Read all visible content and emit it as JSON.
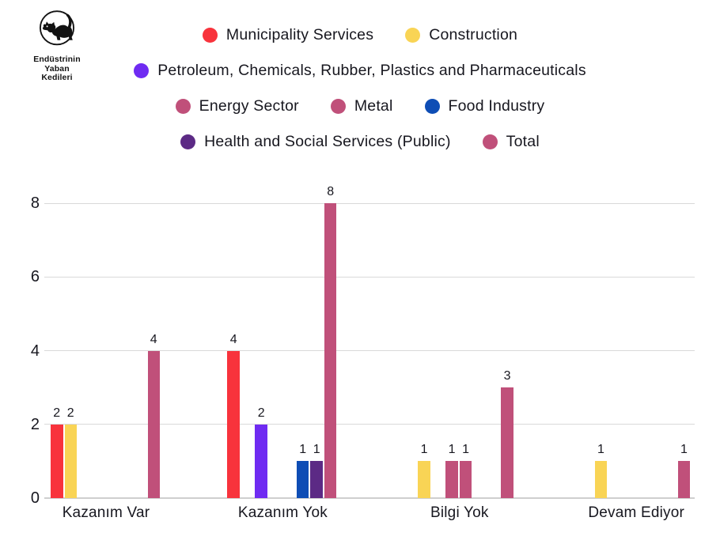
{
  "logo": {
    "org_name_lines": [
      "Endüstrinin",
      "Yaban",
      "Kedileri"
    ]
  },
  "chart_data": {
    "type": "bar",
    "title": "",
    "xlabel": "",
    "ylabel": "",
    "categories": [
      "Kazanım Var",
      "Kazanım Yok",
      "Bilgi Yok",
      "Devam Ediyor"
    ],
    "series": [
      {
        "name": "Municipality Services",
        "color": "#F8333C",
        "values": [
          2,
          4,
          0,
          0
        ]
      },
      {
        "name": "Construction",
        "color": "#F9D455",
        "values": [
          2,
          0,
          1,
          1
        ]
      },
      {
        "name": "Petroleum, Chemicals, Rubber, Plastics and Pharmaceuticals",
        "color": "#6F2BF2",
        "values": [
          0,
          2,
          0,
          0
        ]
      },
      {
        "name": "Energy Sector",
        "color": "#C0507A",
        "values": [
          0,
          0,
          1,
          0
        ]
      },
      {
        "name": "Metal",
        "color": "#C0507A",
        "values": [
          0,
          0,
          1,
          0
        ]
      },
      {
        "name": "Food Industry",
        "color": "#0E4DB5",
        "values": [
          0,
          1,
          0,
          0
        ]
      },
      {
        "name": "Health and Social Services (Public)",
        "color": "#5C2A85",
        "values": [
          0,
          1,
          0,
          0
        ]
      },
      {
        "name": "Total",
        "color": "#C0507A",
        "values": [
          4,
          8,
          3,
          1
        ]
      }
    ],
    "y_ticks": [
      0,
      2,
      4,
      6,
      8
    ],
    "ylim": [
      0,
      8
    ],
    "grid": true,
    "legend_position": "top",
    "legend_rows": [
      [
        0,
        1
      ],
      [
        2
      ],
      [
        3,
        4,
        5
      ],
      [
        6,
        7
      ]
    ],
    "show_bar_value_labels": true,
    "zero_value_bars_hidden": true,
    "text_color": "#17171F",
    "grid_color": "#D9D9D9",
    "axis_line_color": "#CFCFCF"
  }
}
